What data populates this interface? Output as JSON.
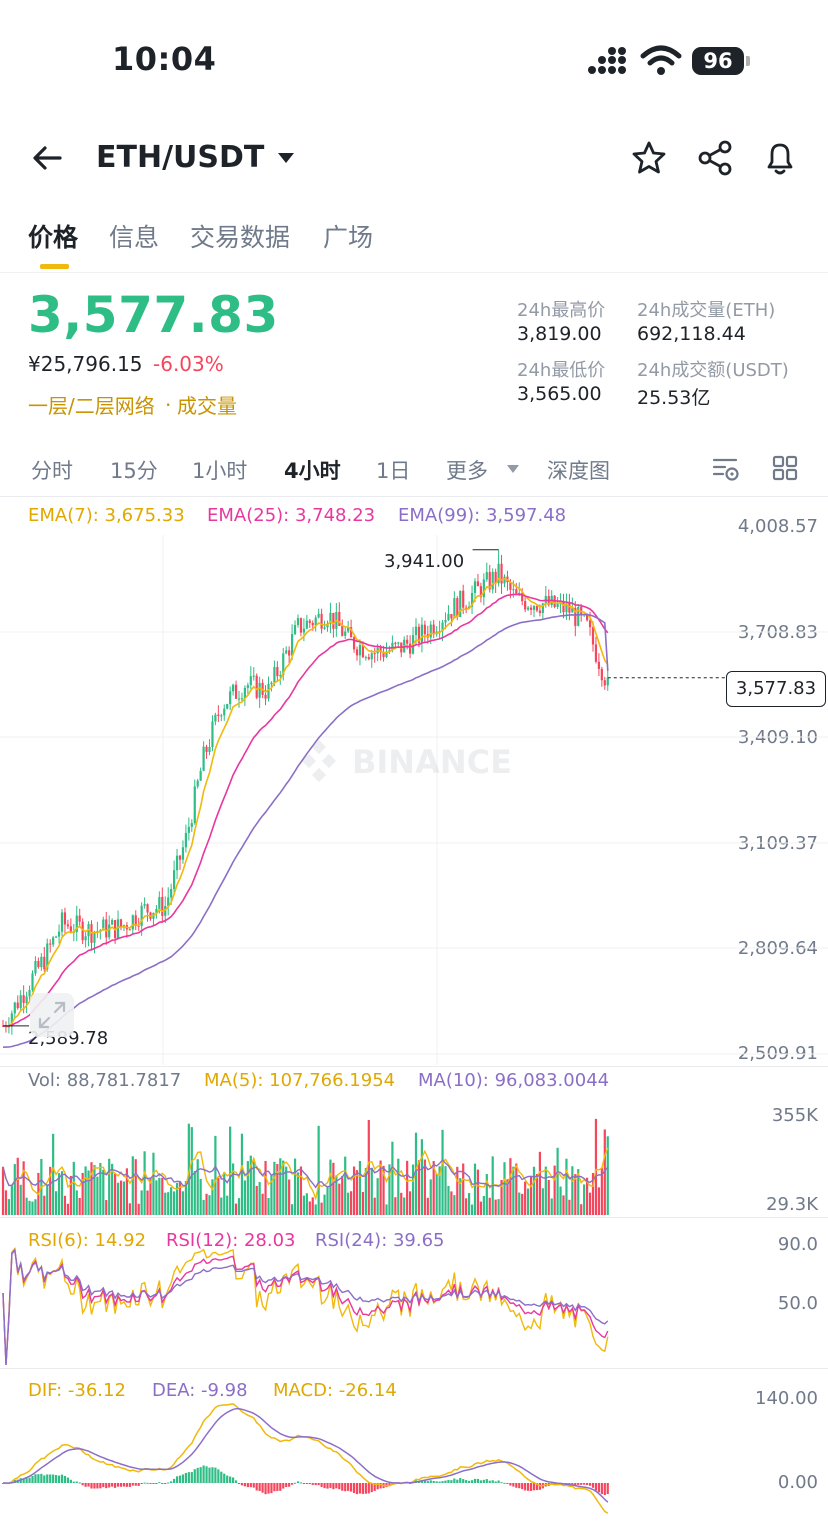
{
  "status_bar": {
    "time": "10:04",
    "battery": "96"
  },
  "header": {
    "pair": "ETH/USDT"
  },
  "tabs": [
    "价格",
    "信息",
    "交易数据",
    "广场"
  ],
  "price": {
    "last": "3,577.83",
    "cny": "¥25,796.15",
    "change": "-6.03%",
    "tags": [
      "一层/二层网络",
      "成交量"
    ]
  },
  "stats": {
    "high_label": "24h最高价",
    "high": "3,819.00",
    "low_label": "24h最低价",
    "low": "3,565.00",
    "vol_label": "24h成交量(ETH)",
    "vol": "692,118.44",
    "amount_label": "24h成交额(USDT)",
    "amount": "25.53亿"
  },
  "intervals": [
    "分时",
    "15分",
    "1小时",
    "4小时",
    "1日",
    "更多",
    "深度图"
  ],
  "active_interval": "4小时",
  "colors": {
    "up": "#2ebd85",
    "down": "#f6465d",
    "ema7": "#f0b90b",
    "ema25": "#e8389f",
    "ema99": "#8b6fc7",
    "accent": "#f0b90b"
  },
  "ema_legend": {
    "ema7": "EMA(7): 3,675.33",
    "ema25": "EMA(25): 3,748.23",
    "ema99": "EMA(99): 3,597.48"
  },
  "price_axis": [
    "4,008.57",
    "3,708.83",
    "3,409.10",
    "3,109.37",
    "2,809.64",
    "2,509.91"
  ],
  "current_price_tag": "3,577.83",
  "annotations": {
    "high": "3,941.00",
    "low": "2,589.78"
  },
  "watermark": "BINANCE",
  "vol_legend": {
    "vol": "Vol: 88,781.7817",
    "ma5": "MA(5): 107,766.1954",
    "ma10": "MA(10): 96,083.0044"
  },
  "vol_axis": [
    "355K",
    "29.3K"
  ],
  "rsi_legend": {
    "rsi6": "RSI(6): 14.92",
    "rsi12": "RSI(12): 28.03",
    "rsi24": "RSI(24): 39.65"
  },
  "rsi_axis": [
    "90.0",
    "50.0"
  ],
  "macd_legend": {
    "dif": "DIF: -36.12",
    "dea": "DEA: -9.98",
    "macd": "MACD: -26.14"
  },
  "macd_axis": [
    "140.00",
    "0.00"
  ],
  "chart_data": {
    "type": "candlestick",
    "y_range": [
      2509.91,
      4008.57
    ],
    "high_marker": 3941.0,
    "low_marker": 2589.78,
    "last_close": 3577.83,
    "ema7_last": 3675.33,
    "ema25_last": 3748.23,
    "ema99_last": 3597.48
  }
}
